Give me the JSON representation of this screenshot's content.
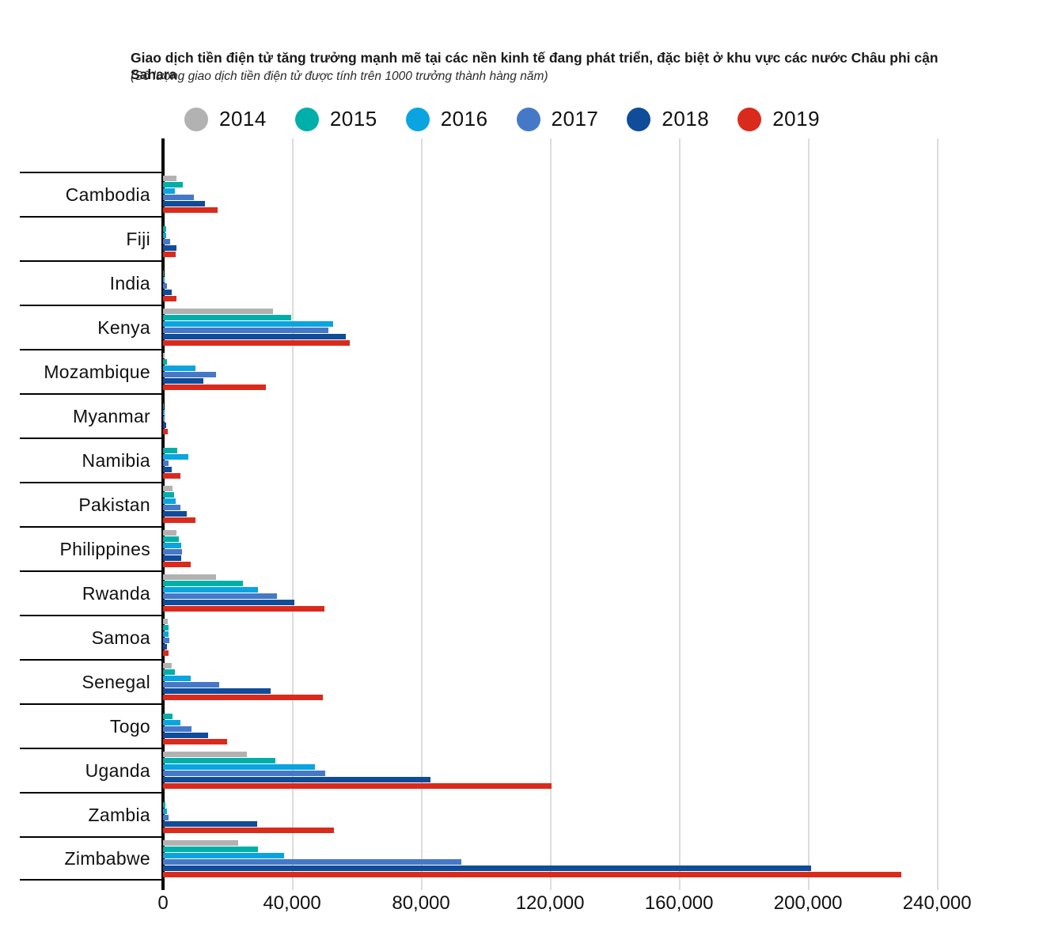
{
  "title": "Giao dịch tiền điện tử  tăng trưởng mạnh mẽ tại các nền kinh tế đang phát triển, đặc biệt ở khu vực các nước Châu phi cận Sahara",
  "subtitle": "(Số lượng giao dịch tiền điện tử được tính trên 1000 trưởng thành hàng năm)",
  "legend": [
    {
      "label": "2014",
      "color": "#b2b2b2"
    },
    {
      "label": "2015",
      "color": "#00afa9"
    },
    {
      "label": "2016",
      "color": "#0aa5e0"
    },
    {
      "label": "2017",
      "color": "#4678c8"
    },
    {
      "label": "2018",
      "color": "#0f4c99"
    },
    {
      "label": "2019",
      "color": "#da2a1c"
    }
  ],
  "chart_data": {
    "type": "bar",
    "orientation": "horizontal",
    "title": "Giao dịch tiền điện tử  tăng trưởng mạnh mẽ tại các nền kinh tế đang phát triển, đặc biệt ở khu vực các nước Châu phi cận Sahara",
    "subtitle": "(Số lượng giao dịch tiền điện tử được tính trên 1000 trưởng thành hàng năm)",
    "xlabel": "",
    "ylabel": "",
    "grid": true,
    "legend_position": "top",
    "xlim": [
      0,
      264000
    ],
    "xticks": [
      0,
      40000,
      80000,
      120000,
      160000,
      200000,
      240000
    ],
    "xtick_labels": [
      "0",
      "40,000",
      "80,000",
      "120,000",
      "160,000",
      "200,000",
      "240,000"
    ],
    "categories": [
      "Cambodia",
      "Fiji",
      "India",
      "Kenya",
      "Mozambique",
      "Myanmar",
      "Namibia",
      "Pakistan",
      "Philippines",
      "Rwanda",
      "Samoa",
      "Senegal",
      "Togo",
      "Uganda",
      "Zambia",
      "Zimbabwe"
    ],
    "series": [
      {
        "name": "2014",
        "color": "#b2b2b2",
        "values": [
          4200,
          0,
          0,
          34000,
          500,
          0,
          0,
          2900,
          4200,
          16400,
          1500,
          2700,
          0,
          26000,
          0,
          23300
        ]
      },
      {
        "name": "2015",
        "color": "#00afa9",
        "values": [
          6100,
          1000,
          300,
          39800,
          1200,
          200,
          4400,
          3400,
          4900,
          24900,
          1700,
          3700,
          2900,
          34900,
          700,
          29400
        ]
      },
      {
        "name": "2016",
        "color": "#0aa5e0",
        "values": [
          3700,
          900,
          500,
          52700,
          10000,
          400,
          7800,
          3900,
          5600,
          29500,
          1700,
          8500,
          5400,
          47200,
          1200,
          37500
        ]
      },
      {
        "name": "2017",
        "color": "#4678c8",
        "values": [
          9500,
          2100,
          1200,
          51400,
          16400,
          500,
          1700,
          5400,
          5900,
          35400,
          2000,
          17300,
          8800,
          50200,
          1700,
          92600
        ]
      },
      {
        "name": "2018",
        "color": "#0f4c99",
        "values": [
          13000,
          4200,
          2700,
          56600,
          12400,
          1000,
          2700,
          7300,
          5600,
          40800,
          1200,
          33400,
          13900,
          83000,
          29100,
          201000
        ]
      },
      {
        "name": "2019",
        "color": "#da2a1c",
        "values": [
          16900,
          3900,
          4200,
          57800,
          32000,
          1500,
          5400,
          10000,
          8500,
          50000,
          1700,
          49600,
          19800,
          120500,
          52900,
          229000
        ]
      }
    ]
  }
}
